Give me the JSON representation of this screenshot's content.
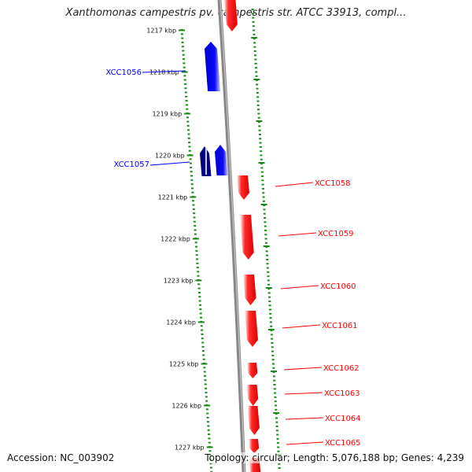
{
  "header": {
    "title": "Xanthomonas campestris pv. campestris str. ATCC 33913, compl..."
  },
  "footer": {
    "accession": "Accession: NC_003902",
    "topology": "Topology: circular; Length: 5,076,188 bp; Genes: 4,239"
  },
  "colors": {
    "forward_gene": "#ff0000",
    "reverse_gene": "#0000ff",
    "backbone": "#888888",
    "tick": "#1a8a1a"
  },
  "scale": {
    "unit": "kbp",
    "ticks": [
      "1217 kbp",
      "1218 kbp",
      "1219 kbp",
      "1220 kbp",
      "1221 kbp",
      "1222 kbp",
      "1223 kbp",
      "1224 kbp",
      "1225 kbp",
      "1226 kbp",
      "1227 kbp"
    ]
  },
  "genes": [
    {
      "label": "XCC1056",
      "strand": "reverse",
      "color": "#0000ff"
    },
    {
      "label": "XCC1057",
      "strand": "reverse",
      "color": "#0000ff"
    },
    {
      "label": "XCC1058",
      "strand": "forward",
      "color": "#ff0000"
    },
    {
      "label": "XCC1059",
      "strand": "forward",
      "color": "#ff0000"
    },
    {
      "label": "XCC1060",
      "strand": "forward",
      "color": "#ff0000"
    },
    {
      "label": "XCC1061",
      "strand": "forward",
      "color": "#ff0000"
    },
    {
      "label": "XCC1062",
      "strand": "forward",
      "color": "#ff0000"
    },
    {
      "label": "XCC1063",
      "strand": "forward",
      "color": "#ff0000"
    },
    {
      "label": "XCC1064",
      "strand": "forward",
      "color": "#ff0000"
    },
    {
      "label": "XCC1065",
      "strand": "forward",
      "color": "#ff0000"
    }
  ]
}
